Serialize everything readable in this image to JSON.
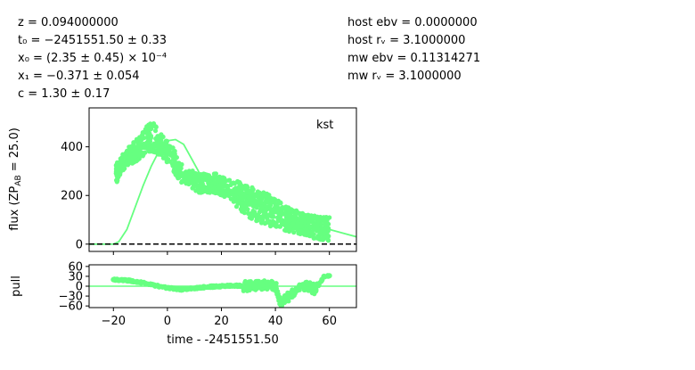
{
  "fit_params": {
    "z": "z = 0.094000000",
    "t0": "t₀ = −2451551.50 ± 0.33",
    "x0": "x₀ = (2.35 ± 0.45) × 10⁻⁴",
    "x1": "x₁ = −0.371 ± 0.054",
    "c": "c = 1.30 ± 0.17"
  },
  "host_params": {
    "host_ebv": "host ebv = 0.0000000",
    "host_rv": "host rᵥ = 3.1000000",
    "mw_ebv": "mw ebv = 0.11314271",
    "mw_rv": "mw rᵥ = 3.1000000"
  },
  "colors": {
    "band": "#66ff80",
    "zero_line": "#000000"
  },
  "chart_data": [
    {
      "type": "scatter",
      "panel": "flux",
      "band": "kst",
      "ylabel": "flux (ZP_AB = 25.0)",
      "xlim": [
        -29,
        70
      ],
      "ylim": [
        -30,
        560
      ],
      "yticks": [
        0,
        200,
        400
      ],
      "xticks": [
        -20,
        0,
        20,
        40,
        60
      ],
      "zero_line": true,
      "data_envelope": [
        {
          "t": -19,
          "lo": 250,
          "hi": 330
        },
        {
          "t": -15,
          "lo": 320,
          "hi": 400
        },
        {
          "t": -10,
          "lo": 350,
          "hi": 450
        },
        {
          "t": -6,
          "lo": 380,
          "hi": 515
        },
        {
          "t": -2,
          "lo": 360,
          "hi": 450
        },
        {
          "t": 2,
          "lo": 300,
          "hi": 400
        },
        {
          "t": 6,
          "lo": 240,
          "hi": 320
        },
        {
          "t": 12,
          "lo": 210,
          "hi": 290
        },
        {
          "t": 18,
          "lo": 210,
          "hi": 290
        },
        {
          "t": 22,
          "lo": 190,
          "hi": 270
        },
        {
          "t": 26,
          "lo": 150,
          "hi": 260
        },
        {
          "t": 30,
          "lo": 110,
          "hi": 240
        },
        {
          "t": 35,
          "lo": 80,
          "hi": 220
        },
        {
          "t": 40,
          "lo": 70,
          "hi": 190
        },
        {
          "t": 45,
          "lo": 50,
          "hi": 150
        },
        {
          "t": 50,
          "lo": 40,
          "hi": 130
        },
        {
          "t": 55,
          "lo": 20,
          "hi": 115
        },
        {
          "t": 60,
          "lo": 10,
          "hi": 110
        }
      ],
      "model": {
        "t": [
          -29,
          -20,
          -18,
          -15,
          -12,
          -9,
          -6,
          -3,
          0,
          3,
          6,
          9,
          12,
          15,
          18,
          22,
          26,
          30,
          35,
          40,
          45,
          50,
          55,
          60,
          70
        ],
        "flux": [
          0,
          0,
          10,
          60,
          150,
          240,
          320,
          385,
          425,
          430,
          410,
          350,
          290,
          250,
          230,
          210,
          190,
          170,
          150,
          130,
          110,
          95,
          80,
          60,
          30
        ]
      }
    },
    {
      "type": "scatter",
      "panel": "pull",
      "ylabel": "pull",
      "xlabel": "time - -2451551.50",
      "xlim": [
        -29,
        70
      ],
      "ylim": [
        -65,
        65
      ],
      "yticks": [
        60,
        30,
        0,
        -30,
        -60
      ],
      "xticks": [
        -20,
        0,
        20,
        40,
        60
      ],
      "points": [
        {
          "t": -20,
          "pull": 20
        },
        {
          "t": -15,
          "pull": 18
        },
        {
          "t": -10,
          "pull": 12
        },
        {
          "t": -5,
          "pull": 3
        },
        {
          "t": 0,
          "pull": -5
        },
        {
          "t": 5,
          "pull": -10
        },
        {
          "t": 10,
          "pull": -6
        },
        {
          "t": 15,
          "pull": -2
        },
        {
          "t": 20,
          "pull": 0
        },
        {
          "t": 25,
          "pull": 2
        },
        {
          "t": 30,
          "pull": 0
        },
        {
          "t": 35,
          "pull": 5
        },
        {
          "t": 40,
          "pull": 3
        },
        {
          "t": 42,
          "pull": -55
        },
        {
          "t": 45,
          "pull": -30
        },
        {
          "t": 50,
          "pull": 5
        },
        {
          "t": 55,
          "pull": -10
        },
        {
          "t": 58,
          "pull": 30
        },
        {
          "t": 60,
          "pull": 32
        }
      ]
    }
  ],
  "labels": {
    "flux_ylabel": "flux (ZP",
    "flux_ylabel_sub": "AB",
    "flux_ylabel_tail": " = 25.0)",
    "pull_ylabel": "pull",
    "xlabel": "time - -2451551.50",
    "band": "kst"
  }
}
